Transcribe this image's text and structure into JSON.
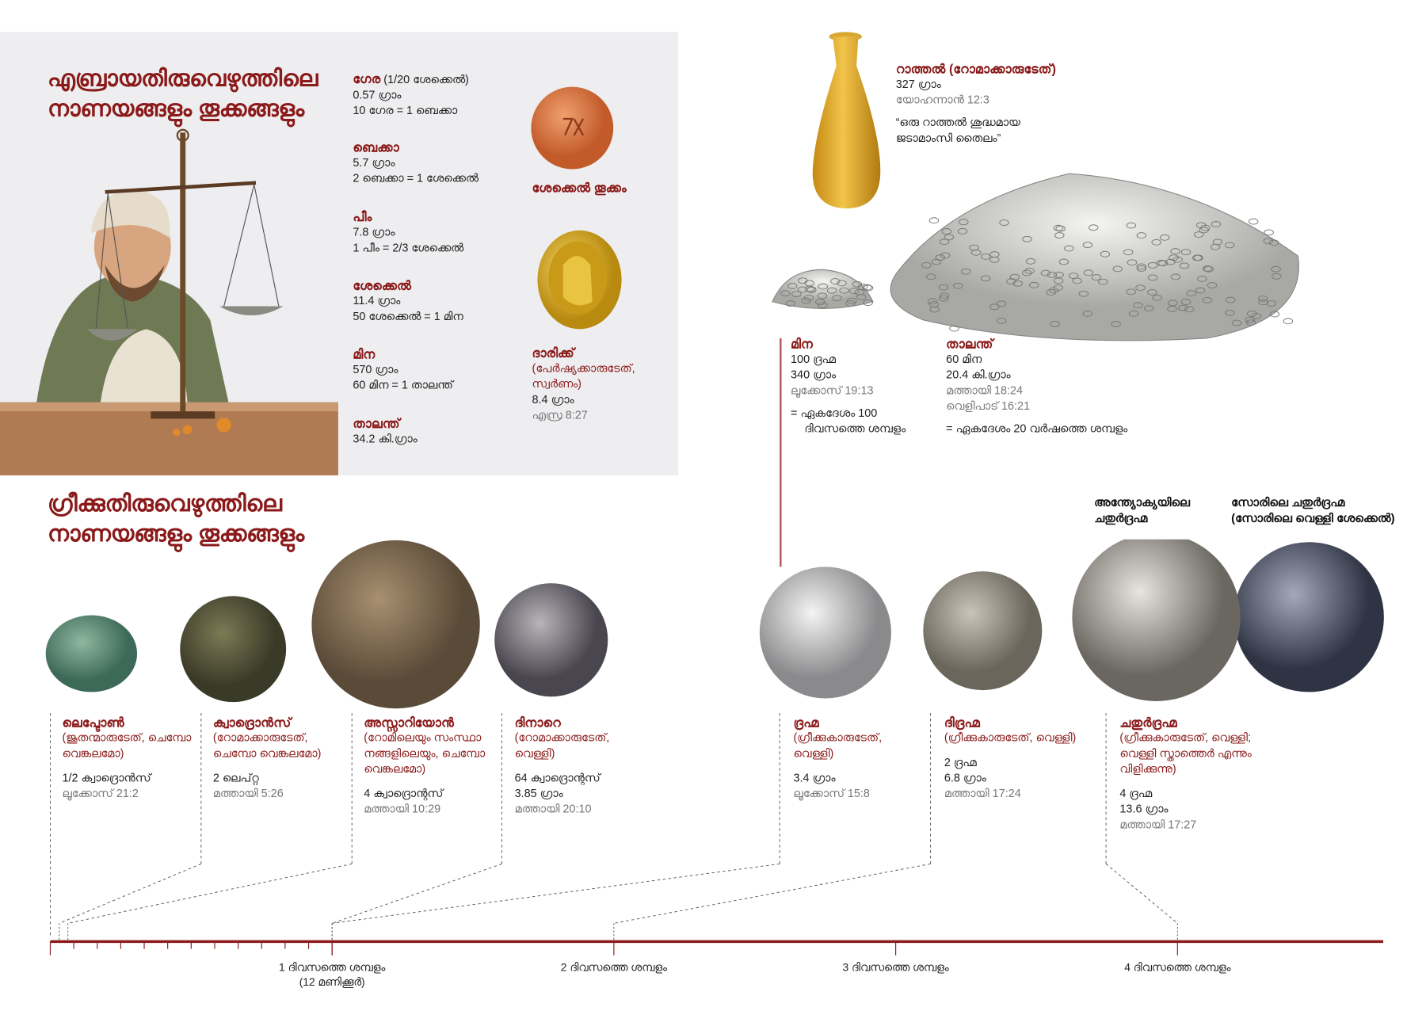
{
  "hebrew_section": {
    "title_lines": [
      "എബ്രായതിരുവെഴുത്തിലെ",
      "നാണയങ്ങളും തൂക്കങ്ങളും"
    ],
    "units": [
      {
        "name": "ഗേര",
        "note": "(1/20 ശേക്കെൽ)",
        "weight": "0.57 ഗ്രാം",
        "equiv": "10 ഗേര = 1 ബെക്കാ"
      },
      {
        "name": "ബെക്കാ",
        "weight": "5.7 ഗ്രാം",
        "equiv": "2 ബെക്കാ = 1 ശേക്കെൽ"
      },
      {
        "name": "പീം",
        "weight": "7.8 ഗ്രാം",
        "equiv": "1 പീം = 2/3 ശേക്കെൽ"
      },
      {
        "name": "ശേക്കെൽ",
        "weight": "11.4 ഗ്രാം",
        "equiv": "50 ശേക്കെൽ = 1 മിന"
      },
      {
        "name": "മിന",
        "weight": "570 ഗ്രാം",
        "equiv": "60 മിന = 1 താലന്ത്"
      },
      {
        "name": "താലന്ത്",
        "weight": "34.2 കി.ഗ്രാം"
      }
    ],
    "shekel_weight_label": "ശേക്കെൽ തൂക്കം",
    "daric": {
      "name": "ദാരിക്ക്",
      "desc_lines": [
        "(പേർഷ്യക്കാരുടേത്,",
        "സ്വർണം)"
      ],
      "weight": "8.4 ഗ്രാം",
      "ref": "എസ്ര 8:27"
    }
  },
  "pound": {
    "name": "റാത്തൽ (റോമാക്കാരുടേത്)",
    "weight": "327 ഗ്രാം",
    "ref": "യോഹന്നാൻ 12:3",
    "quote_lines": [
      "“ഒരു റാത്തൽ ശുദ്ധമായ",
      "ജടാമാംസി തൈലം”"
    ]
  },
  "mina": {
    "name": "മിന",
    "lines": [
      "100 ദ്രഹ്മ",
      "340 ഗ്രാം"
    ],
    "ref": "ലൂക്കോസ് 19:13",
    "wage_lines": [
      "= ഏകദേശം 100",
      "ദിവസത്തെ ശമ്പളം"
    ]
  },
  "talent": {
    "name": "താലന്ത്",
    "lines": [
      "60 മിന",
      "20.4 കി.ഗ്രാം"
    ],
    "refs": [
      "മത്തായി 18:24",
      "വെളിപാട് 16:21"
    ],
    "wage": "= ഏകദേശം 20 വർഷത്തെ ശമ്പളം"
  },
  "greek_section": {
    "title_lines": [
      "ഗ്രീക്കുതിരുവെഴുത്തിലെ",
      "നാണയങ്ങളും തൂക്കങ്ങളും"
    ],
    "antioch_label_lines": [
      "അന്ത്യോക്യയിലെ",
      "ചതുർദ്രഹ്മ"
    ],
    "tyre_label_lines": [
      "സോരിലെ ചതുർദ്രഹ്മ",
      "(സോരിലെ വെള്ളി ശേക്കെൽ)"
    ],
    "coins": [
      {
        "name": "ലെപ്ടോൺ",
        "desc": [
          "(ജൂതന്മാരുടേത്, ചെമ്പോ",
          "വെങ്കലമോ)"
        ],
        "value": [
          "1/2 ക്വാദ്രൊൻസ്"
        ],
        "ref": "ലൂക്കോസ് 21:2",
        "day_fraction": 0.0078
      },
      {
        "name": "ക്വാദ്രൊൻസ്",
        "desc": [
          "(റോമാക്കാരുടേത്,",
          "ചെമ്പോ വെങ്കലമോ)"
        ],
        "value": [
          "2 ലെപ്റ്റ"
        ],
        "ref": "മത്തായി 5:26",
        "day_fraction": 0.0156
      },
      {
        "name": "അസ്സാറിയോൻ",
        "desc": [
          "(റോമിലെയും സംസ്ഥാ",
          "നങ്ങളിലെയും, ചെമ്പോ",
          "വെങ്കലമോ)"
        ],
        "value": [
          "4 ക്വാദ്രൊന്റസ്"
        ],
        "ref": "മത്തായി 10:29",
        "day_fraction": 0.0625
      },
      {
        "name": "ദിനാറെ",
        "desc": [
          "(റോമാക്കാരുടേത്,",
          "വെള്ളി)"
        ],
        "value": [
          "64 ക്വാദ്രൊന്റസ്",
          "3.85 ഗ്രാം"
        ],
        "ref": "മത്തായി 20:10",
        "day_fraction": 1
      },
      {
        "name": "ദ്രഹ്മ",
        "desc": [
          "(ഗ്രീക്കുകാരുടേത്,",
          "വെള്ളി)"
        ],
        "value": [
          "3.4 ഗ്രാം"
        ],
        "ref": "ലൂക്കോസ് 15:8",
        "day_fraction": 1
      },
      {
        "name": "ദിദ്രഹ്മ",
        "desc": [
          "(ഗ്രീക്കുകാരുടേത്, വെള്ളി)"
        ],
        "value": [
          "2 ദ്രഹ്മ",
          "6.8 ഗ്രാം"
        ],
        "ref": "മത്തായി 17:24",
        "day_fraction": 2
      },
      {
        "name": "ചതുർദ്രഹ്മ",
        "desc": [
          "(ഗ്രീക്കുകാരുടേത്, വെള്ളി;",
          "വെള്ളി സ്താത്തെർ എന്നും",
          "വിളിക്കുന്നു)"
        ],
        "value": [
          "4 ദ്രഹ്മ",
          "13.6 ഗ്രാം"
        ],
        "ref": "മത്തായി 17:27",
        "day_fraction": 4
      }
    ]
  },
  "timeline": {
    "max_days": 4.73,
    "labels": [
      {
        "day": 1,
        "lines": [
          "1 ദിവസത്തെ ശമ്പളം",
          "(12 മണിക്കൂർ)"
        ]
      },
      {
        "day": 2,
        "lines": [
          "2 ദിവസത്തെ ശമ്പളം"
        ]
      },
      {
        "day": 3,
        "lines": [
          "3 ദിവസത്തെ ശമ്പളം"
        ]
      },
      {
        "day": 4,
        "lines": [
          "4 ദിവസത്തെ ശമ്പളം"
        ]
      }
    ]
  },
  "colors": {
    "accent": "#8b1a1a",
    "panel": "#eeeef0",
    "timeline": "#8b1a1a"
  }
}
